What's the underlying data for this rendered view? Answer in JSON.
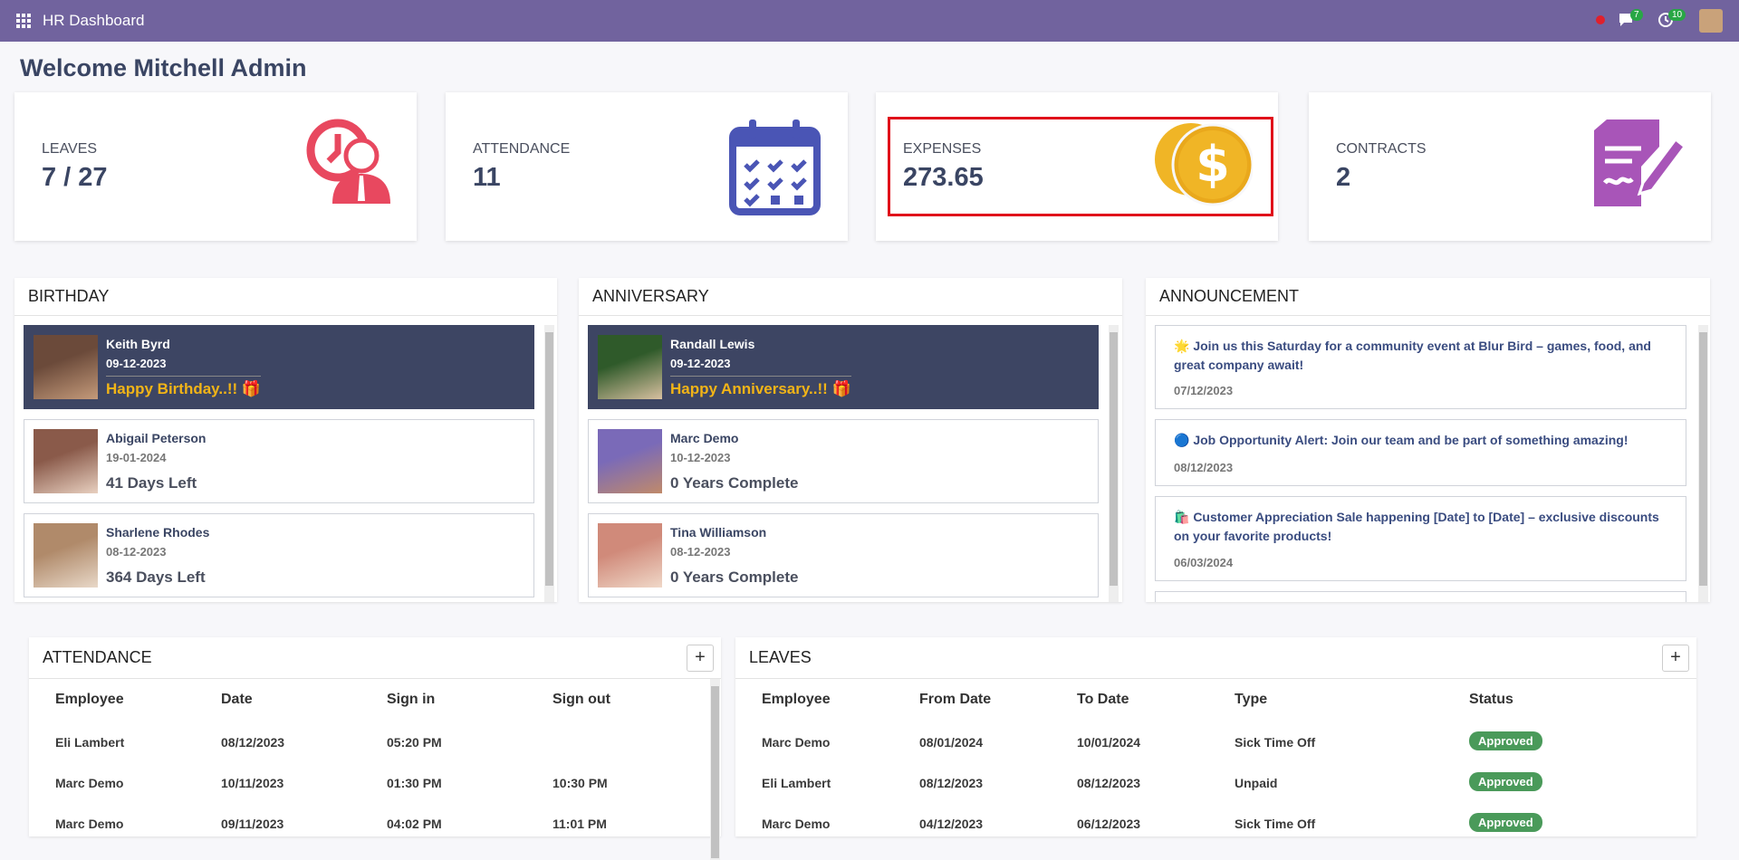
{
  "header": {
    "title": "HR Dashboard",
    "badges": [
      "7",
      "10"
    ]
  },
  "welcome": "Welcome Mitchell Admin",
  "cards": [
    {
      "label": "LEAVES",
      "value": "7 / 27"
    },
    {
      "label": "ATTENDANCE",
      "value": "11"
    },
    {
      "label": "EXPENSES",
      "value": "273.65"
    },
    {
      "label": "CONTRACTS",
      "value": "2"
    }
  ],
  "birthday": {
    "title": "BIRTHDAY",
    "items": [
      {
        "name": "Keith Byrd",
        "date": "09-12-2023",
        "note": "Happy Birthday..!! 🎁"
      },
      {
        "name": "Abigail Peterson",
        "date": "19-01-2024",
        "note": "41 Days Left"
      },
      {
        "name": "Sharlene Rhodes",
        "date": "08-12-2023",
        "note": "364 Days Left"
      }
    ]
  },
  "anniversary": {
    "title": "ANNIVERSARY",
    "items": [
      {
        "name": "Randall Lewis",
        "date": "09-12-2023",
        "note": "Happy Anniversary..!! 🎁"
      },
      {
        "name": "Marc Demo",
        "date": "10-12-2023",
        "note": "0 Years Complete"
      },
      {
        "name": "Tina Williamson",
        "date": "08-12-2023",
        "note": "0 Years Complete"
      }
    ]
  },
  "announcement": {
    "title": "ANNOUNCEMENT",
    "items": [
      {
        "text": "🌟 Join us this Saturday for a community event at Blur Bird – games, food, and great company await!",
        "date": "07/12/2023"
      },
      {
        "text": "🔵 Job Opportunity Alert: Join our team and be part of something amazing!",
        "date": "08/12/2023"
      },
      {
        "text": "🛍️ Customer Appreciation Sale happening [Date] to [Date] – exclusive discounts on your favorite products!",
        "date": "06/03/2024"
      }
    ]
  },
  "attendance": {
    "title": "ATTENDANCE",
    "button": "+",
    "columns": [
      "Employee",
      "Date",
      "Sign in",
      "Sign out"
    ],
    "rows": [
      [
        "Eli Lambert",
        "08/12/2023",
        "05:20 PM",
        ""
      ],
      [
        "Marc Demo",
        "10/11/2023",
        "01:30 PM",
        "10:30 PM"
      ],
      [
        "Marc Demo",
        "09/11/2023",
        "04:02 PM",
        "11:01 PM"
      ]
    ]
  },
  "leaves": {
    "title": "LEAVES",
    "button": "+",
    "columns": [
      "Employee",
      "From Date",
      "To Date",
      "Type",
      "Status"
    ],
    "rows": [
      [
        "Marc Demo",
        "08/01/2024",
        "10/01/2024",
        "Sick Time Off",
        "Approved"
      ],
      [
        "Eli Lambert",
        "08/12/2023",
        "08/12/2023",
        "Unpaid",
        "Approved"
      ],
      [
        "Marc Demo",
        "04/12/2023",
        "06/12/2023",
        "Sick Time Off",
        "Approved"
      ]
    ]
  }
}
